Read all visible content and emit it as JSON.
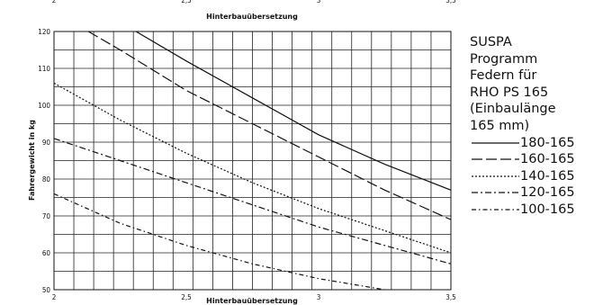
{
  "chart_data": {
    "type": "line",
    "title": "",
    "xlabel": "Hinterbauübersetzung",
    "xlabel_top": "Hinterbauübersetzung",
    "ylabel": "Fahrergewicht in kg",
    "xlim": [
      2,
      3.5
    ],
    "ylim": [
      50,
      120
    ],
    "x_ticks": [
      2,
      2.5,
      3,
      3.5
    ],
    "x_tick_labels": [
      "2",
      "2,5",
      "3",
      "3,5"
    ],
    "y_ticks": [
      50,
      60,
      70,
      80,
      90,
      100,
      110,
      120
    ],
    "y_tick_labels": [
      "50",
      "60",
      "70",
      "80",
      "90",
      "100",
      "110",
      "120"
    ],
    "grid": true,
    "legend_placement": "right",
    "series": [
      {
        "name": "180-165",
        "dash": "solid",
        "x": [
          2.31,
          2.5,
          2.75,
          3,
          3.25,
          3.5
        ],
        "y": [
          120,
          112,
          102,
          92,
          84,
          77
        ]
      },
      {
        "name": "160-165",
        "dash": "long-dash",
        "x": [
          2.13,
          2.25,
          2.5,
          2.75,
          3,
          3.25,
          3.5
        ],
        "y": [
          120,
          115,
          104,
          95,
          86,
          77,
          69
        ]
      },
      {
        "name": "140-165",
        "dash": "dotted",
        "x": [
          2,
          2.25,
          2.5,
          2.75,
          3,
          3.25,
          3.5
        ],
        "y": [
          106,
          96,
          87,
          79,
          72,
          66,
          60
        ]
      },
      {
        "name": "120-165",
        "dash": "dash-dot",
        "x": [
          2,
          2.25,
          2.5,
          2.75,
          3,
          3.25,
          3.5
        ],
        "y": [
          91,
          85,
          79,
          73,
          67,
          62,
          57
        ]
      },
      {
        "name": "100-165",
        "dash": "dash-dot-short",
        "x": [
          2,
          2.25,
          2.5,
          2.75,
          3,
          3.25,
          3.5
        ],
        "y": [
          76,
          68,
          62,
          57,
          53,
          50,
          48
        ]
      }
    ]
  },
  "legend": {
    "title_lines": [
      "SUSPA",
      "Programm",
      "Federn für",
      "RHO PS 165",
      "(Einbaulänge",
      "165 mm)"
    ]
  }
}
